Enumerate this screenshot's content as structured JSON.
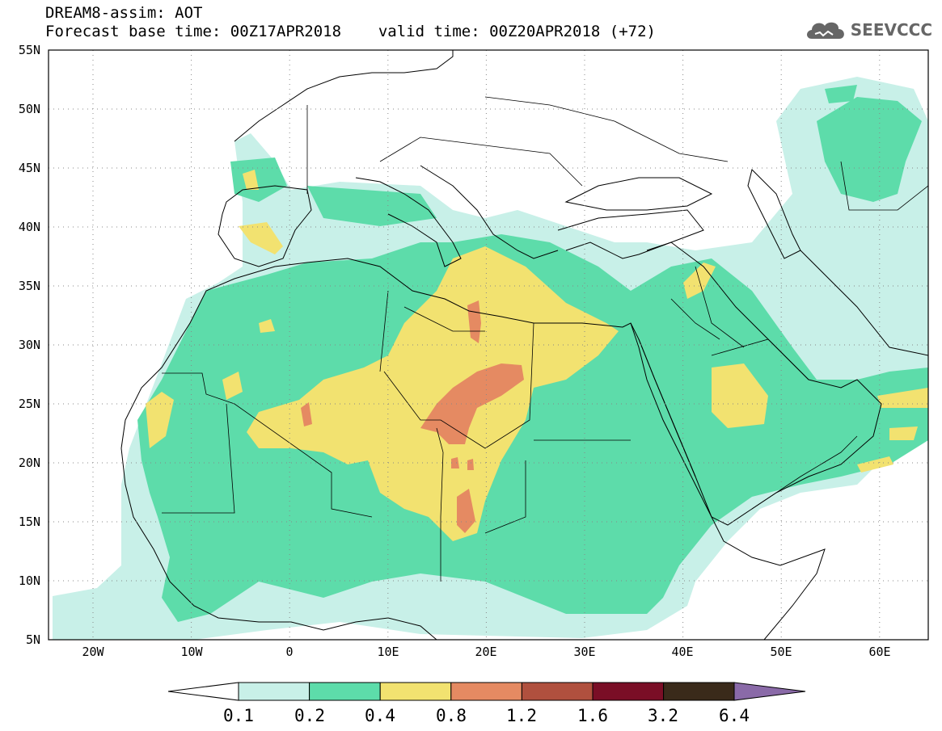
{
  "header": {
    "title_line1": "DREAM8-assim: AOT",
    "forecast_base": "Forecast base time: 00Z17APR2018",
    "valid_time": "valid time: 00Z20APR2018 (+72)"
  },
  "logo": {
    "text": "SEEVCCC",
    "icon": "cloud-icon"
  },
  "map": {
    "lat_labels": [
      "55N",
      "50N",
      "45N",
      "40N",
      "35N",
      "30N",
      "25N",
      "20N",
      "15N",
      "10N",
      "5N"
    ],
    "lon_labels": [
      "20W",
      "10W",
      "0",
      "10E",
      "20E",
      "30E",
      "40E",
      "50E",
      "60E"
    ],
    "grid": true
  },
  "colorbar": {
    "labels": [
      "0.1",
      "0.2",
      "0.4",
      "0.8",
      "1.2",
      "1.6",
      "3.2",
      "6.4"
    ],
    "colors": [
      "#c8f0e8",
      "#5ddcaa",
      "#f2e270",
      "#e58a62",
      "#b0503e",
      "#7a0e26",
      "#3a2a1a",
      "#8a6aa8"
    ]
  },
  "field_colors": {
    "light": "#c8f0e8",
    "green": "#5ddcaa",
    "yellow": "#f2e270",
    "orange": "#e58a62"
  }
}
